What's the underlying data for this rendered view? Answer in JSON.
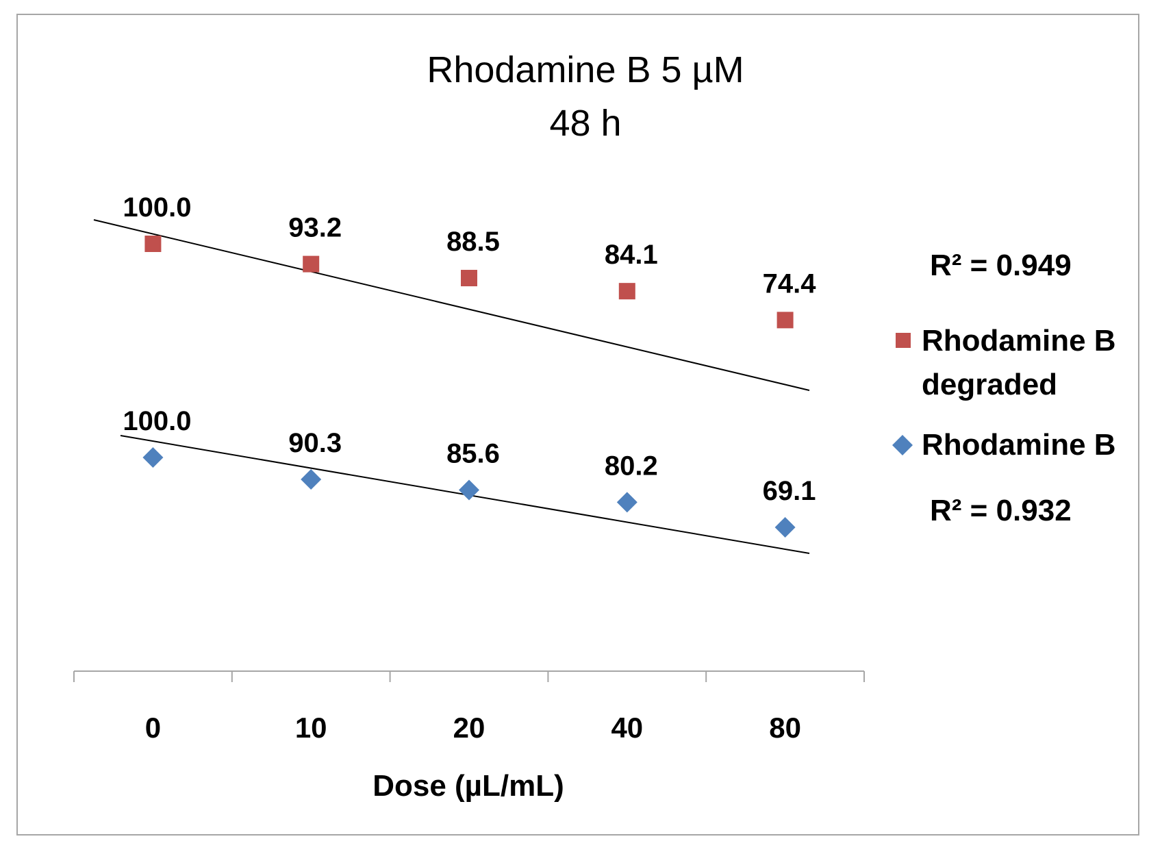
{
  "chart_data": {
    "type": "scatter",
    "title": [
      "Rhodamine B 5 µM",
      "48 h"
    ],
    "xlabel": "Dose (µL/mL)",
    "ylabel": "",
    "categories": [
      "0",
      "10",
      "20",
      "40",
      "80"
    ],
    "ylim": [
      0,
      120
    ],
    "series": [
      {
        "name": "Rhodamine B degraded",
        "legend_lines": [
          "Rhodamine B",
          "degraded"
        ],
        "marker": "square",
        "color": "#c0504d",
        "values": [
          100.0,
          93.2,
          88.5,
          84.1,
          74.4
        ],
        "labels": [
          "100.0",
          "93.2",
          "88.5",
          "84.1",
          "74.4"
        ],
        "r2": "R² = 0.949"
      },
      {
        "name": "Rhodamine B",
        "legend_lines": [
          "Rhodamine B"
        ],
        "marker": "diamond",
        "color": "#4f81bd",
        "values": [
          100.0,
          90.3,
          85.6,
          80.2,
          69.1
        ],
        "labels": [
          "100.0",
          "90.3",
          "85.6",
          "80.2",
          "69.1"
        ],
        "r2": "R² = 0.932"
      }
    ],
    "trendline": "linear",
    "legend_position": "right"
  }
}
